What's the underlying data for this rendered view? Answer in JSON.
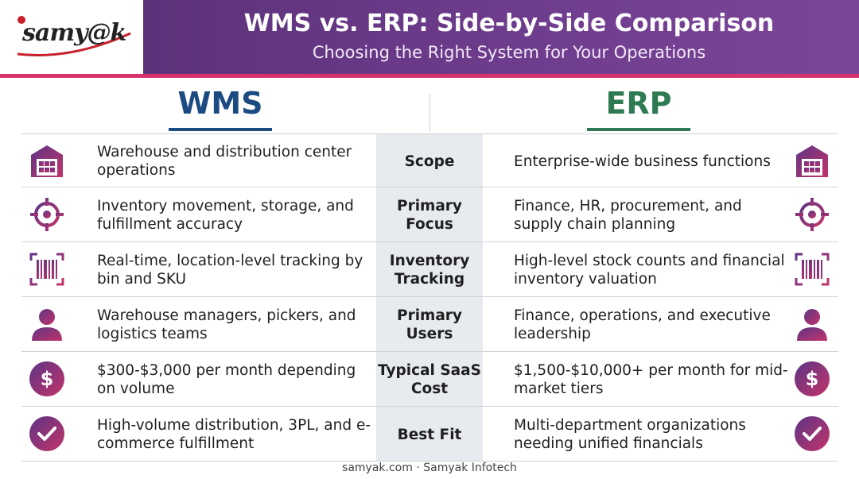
{
  "header": {
    "logo_text": "samy@k",
    "title": "WMS vs. ERP: Side-by-Side Comparison",
    "subtitle": "Choosing the Right System for Your Operations"
  },
  "columns": {
    "left": "WMS",
    "right": "ERP"
  },
  "rows": [
    {
      "label": "Scope",
      "wms": "Warehouse and distribution center operations",
      "erp": "Enterprise-wide business functions",
      "icon": "warehouse-icon"
    },
    {
      "label": "Primary Focus",
      "wms": "Inventory movement, storage, and fulfillment accuracy",
      "erp": "Finance, HR, procurement, and supply chain planning",
      "icon": "target-icon"
    },
    {
      "label": "Inventory Tracking",
      "wms": "Real-time, location-level tracking by bin and SKU",
      "erp": "High-level stock counts and financial inventory valuation",
      "icon": "barcode-icon"
    },
    {
      "label": "Primary Users",
      "wms": "Warehouse managers, pickers, and logistics teams",
      "erp": "Finance, operations, and executive leadership",
      "icon": "user-icon"
    },
    {
      "label": "Typical SaaS Cost",
      "wms": "$300-$3,000 per month depending on volume",
      "erp": "$1,500-$10,000+ per month for mid-market tiers",
      "icon": "dollar-icon"
    },
    {
      "label": "Best Fit",
      "wms": "High-volume distribution, 3PL, and e-commerce fulfillment",
      "erp": "Multi-department organizations needing unified financials",
      "icon": "check-icon"
    }
  ],
  "footer": "samyak.com · Samyak Infotech",
  "colors": {
    "banner": "#6f3d8e",
    "accent_stripe": "#d6336c",
    "wms": "#1c4b82",
    "erp": "#2e7a52",
    "icon_gradient_start": "#6a3a8c",
    "icon_gradient_end": "#c2336a"
  }
}
